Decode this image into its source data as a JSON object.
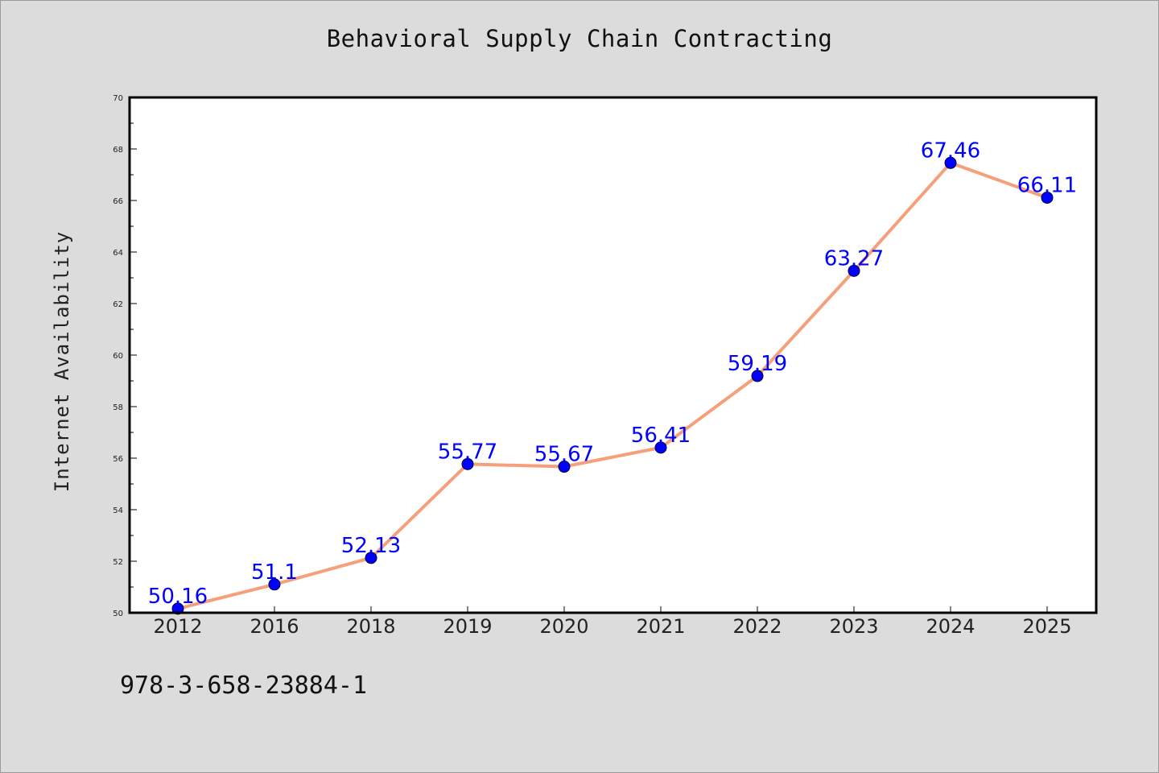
{
  "chart_data": {
    "type": "line",
    "title": "Behavioral Supply Chain Contracting",
    "xlabel": "",
    "ylabel": "Internet Availability",
    "categories": [
      "2012",
      "2016",
      "2018",
      "2019",
      "2020",
      "2021",
      "2022",
      "2023",
      "2024",
      "2025"
    ],
    "values": [
      50.16,
      51.1,
      52.13,
      55.77,
      55.67,
      56.41,
      59.19,
      63.27,
      67.46,
      66.11
    ],
    "data_labels": [
      "50.16",
      "51.1",
      "52.13",
      "55.77",
      "55.67",
      "56.41",
      "59.19",
      "63.27",
      "67.46",
      "66.11"
    ],
    "ylim": [
      50,
      70
    ],
    "yticks": [
      "50",
      "52",
      "54",
      "56",
      "58",
      "60",
      "62",
      "64",
      "66",
      "68",
      "70"
    ],
    "grid": false,
    "legend": "none",
    "colors": {
      "line": "#f5a07a",
      "marker": "#0000ff",
      "data_label": "#0000ff",
      "plot_background": "#ffffff",
      "figure_background": "#dcdcdc"
    }
  },
  "footer": {
    "text": "978-3-658-23884-1"
  }
}
